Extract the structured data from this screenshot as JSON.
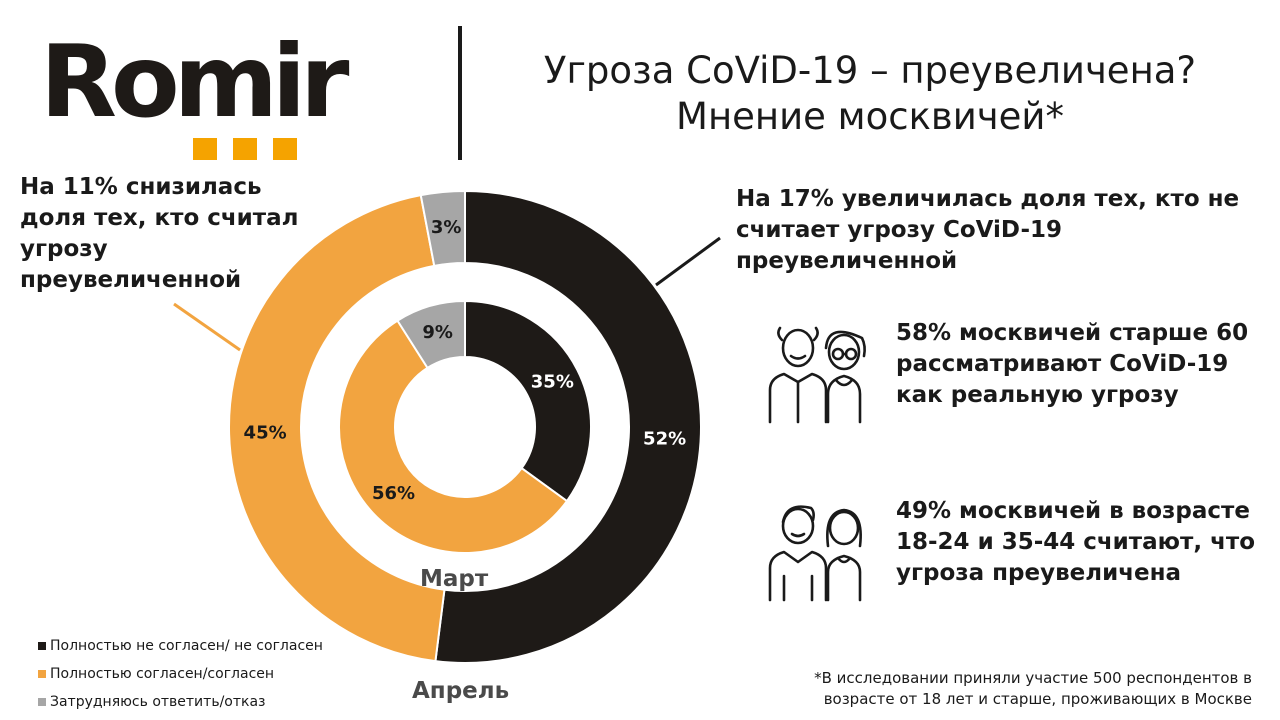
{
  "brand": {
    "logo_text": "Romir"
  },
  "header": {
    "title_line1": "Угроза CoViD-19 – преувеличена?",
    "title_line2": "Мнение москвичей*"
  },
  "annotations": {
    "left": "На 11% снизилась доля тех, кто считал угрозу преувеличенной",
    "right": "На 17% увеличилась доля тех, кто не считает угрозу CoViD-19 преувеличенной"
  },
  "stats": [
    {
      "text": "58% москвичей старше 60 рассматривают CoViD-19 как реальную угрозу",
      "icon": "elderly-couple-icon"
    },
    {
      "text": "49% москвичей в возрасте 18-24 и 35-44 считают, что угроза преувеличена",
      "icon": "young-couple-icon"
    }
  ],
  "footnote": "*В исследовании приняли участие 500 респондентов в возрасте от 18 лет и старше, проживающих в Москве",
  "colors": {
    "disagree": "#1e1a17",
    "agree": "#f2a440",
    "unsure": "#a6a6a6",
    "logo_accent": "#f5a300"
  },
  "chart_data": {
    "type": "pie",
    "subtype": "nested-donut",
    "categories": [
      "Полностью не согласен/ не согласен",
      "Полностью согласен/согласен",
      "Затрудняюсь ответить/отказ"
    ],
    "series": [
      {
        "name": "Март",
        "ring": "inner",
        "values": [
          35,
          56,
          9
        ],
        "labels": [
          "35%",
          "56%",
          "9%"
        ]
      },
      {
        "name": "Апрель",
        "ring": "outer",
        "values": [
          52,
          45,
          3
        ],
        "labels": [
          "52%",
          "45%",
          "3%"
        ]
      }
    ],
    "legend_position": "bottom-left"
  }
}
